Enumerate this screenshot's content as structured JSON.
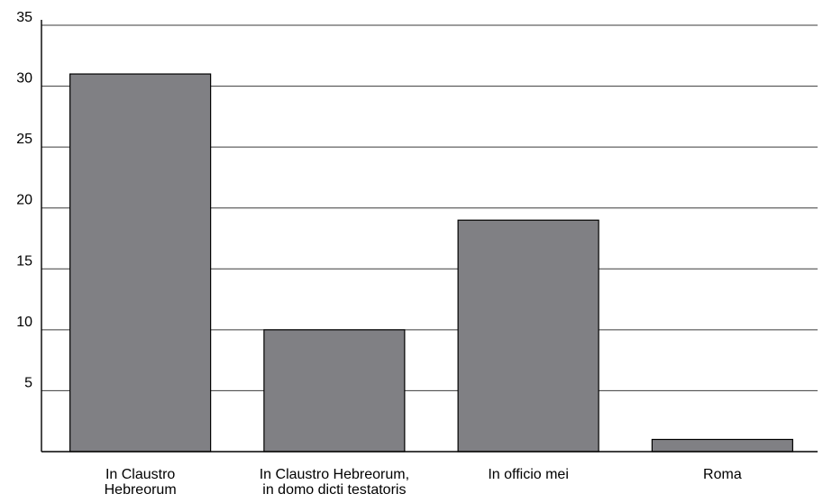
{
  "chart_data": {
    "type": "bar",
    "categories": [
      [
        "In Claustro",
        "Hebreorum"
      ],
      [
        "In Claustro Hebreorum,",
        "in domo dicti testatoris"
      ],
      [
        "In officio mei"
      ],
      [
        "Roma"
      ]
    ],
    "values": [
      31,
      10,
      19,
      1
    ],
    "ylim": [
      0,
      35
    ],
    "yticks": [
      5,
      10,
      15,
      20,
      25,
      30,
      35
    ],
    "grid": true,
    "bar_color": "#808084"
  }
}
